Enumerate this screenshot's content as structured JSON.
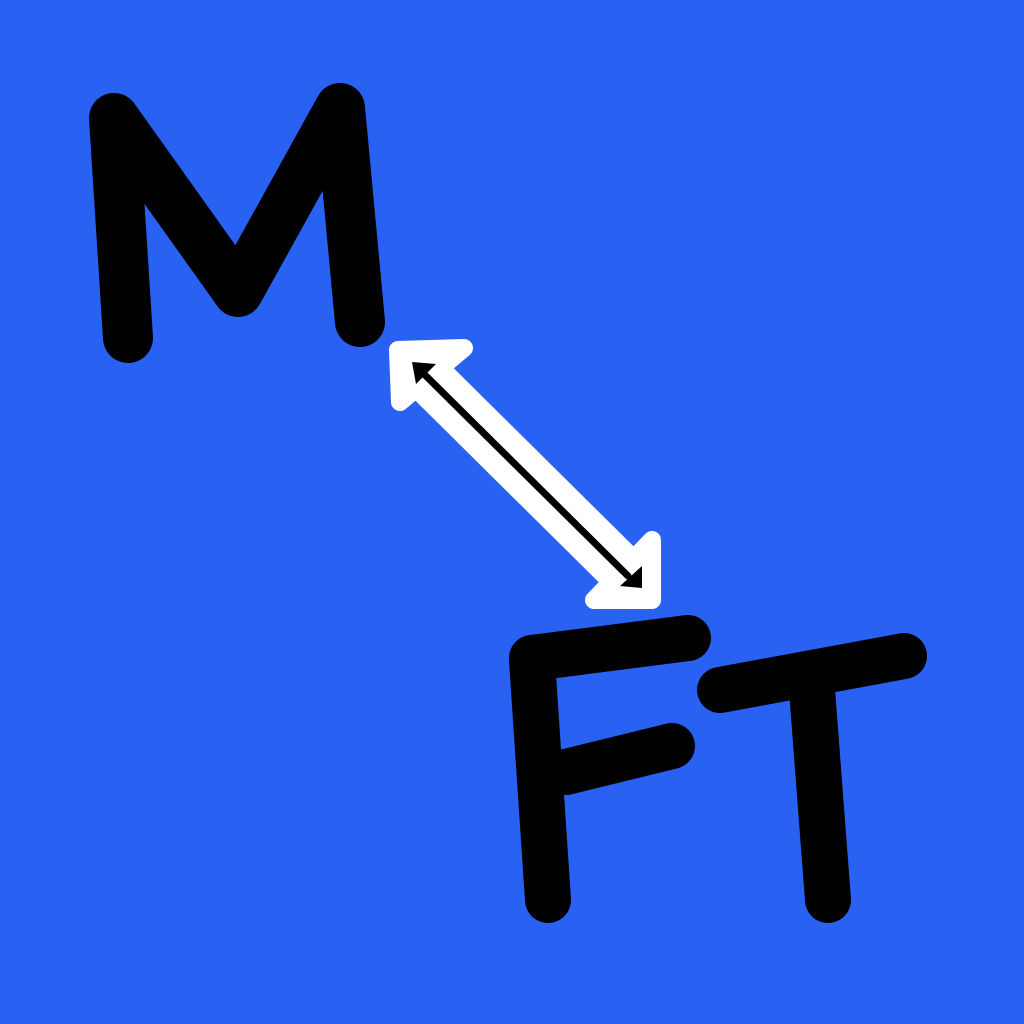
{
  "logo": {
    "top_text": "M",
    "bottom_text": "FT",
    "arrow_icon": "double-headed-arrow-icon",
    "colors": {
      "background": "#2962f3",
      "letters": "#000000",
      "arrow_outline": "#ffffff",
      "arrow_core": "#000000"
    }
  }
}
